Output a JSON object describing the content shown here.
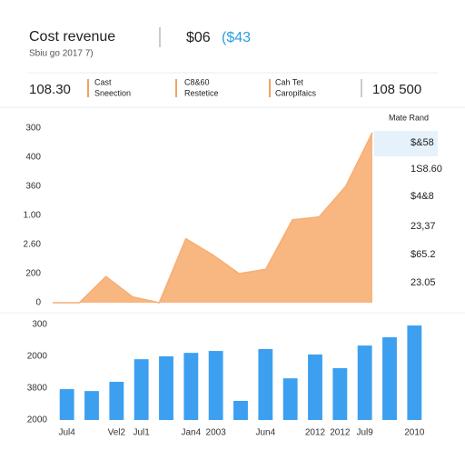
{
  "header": {
    "title": "Cost revenue",
    "subtitle": "Sbiu go 2017 7)",
    "amount": "$06",
    "amount_alt": "($43"
  },
  "stats": [
    {
      "value": "108.30"
    },
    {
      "label": "Cast",
      "sub": "Sneection"
    },
    {
      "label": "C8&60",
      "sub": "Restetice"
    },
    {
      "label": "Cah Tet",
      "sub": "Caropifaics"
    },
    {
      "value": "108 500"
    }
  ],
  "side_panel": {
    "title": "Mate Rand",
    "values": [
      "$&58",
      "1S8.60",
      "$4&8",
      "23,37",
      "$65.2",
      "23.05"
    ]
  },
  "chart_data": [
    {
      "type": "area",
      "categories": [
        null,
        null,
        null,
        null,
        null,
        null,
        null,
        null,
        null,
        null,
        null,
        null,
        null
      ],
      "values": [
        0,
        0,
        0.9,
        0.2,
        0,
        2.2,
        1.65,
        1.0,
        1.15,
        2.85,
        2.95,
        4.0,
        5.85
      ],
      "color": "#f7ae72",
      "ylim": [
        0,
        6
      ],
      "yticks": [
        {
          "value": 0,
          "label": "0"
        },
        {
          "value": 1,
          "label": "200"
        },
        {
          "value": 2,
          "label": "2.60"
        },
        {
          "value": 3,
          "label": "1.00"
        },
        {
          "value": 4,
          "label": "360"
        },
        {
          "value": 5,
          "label": "400"
        },
        {
          "value": 6,
          "label": "300"
        }
      ]
    },
    {
      "type": "bar",
      "categories": [
        "Jul4",
        null,
        "Vel2",
        "Jul1",
        null,
        "Jan4",
        "2003",
        null,
        "Jun4",
        null,
        "2012",
        "2012",
        "Jul9",
        null,
        "2010"
      ],
      "values": [
        0.97,
        0.91,
        1.2,
        1.91,
        2.0,
        2.11,
        2.17,
        0.6,
        2.23,
        1.31,
        2.06,
        1.63,
        2.34,
        2.6,
        2.97
      ],
      "color": "#3d9ff0",
      "ylim": [
        0,
        3.2
      ],
      "yticks": [
        {
          "value": 0,
          "label": "2000"
        },
        {
          "value": 1,
          "label": "3800"
        },
        {
          "value": 2,
          "label": "2000"
        },
        {
          "value": 3,
          "label": "300"
        }
      ]
    }
  ]
}
